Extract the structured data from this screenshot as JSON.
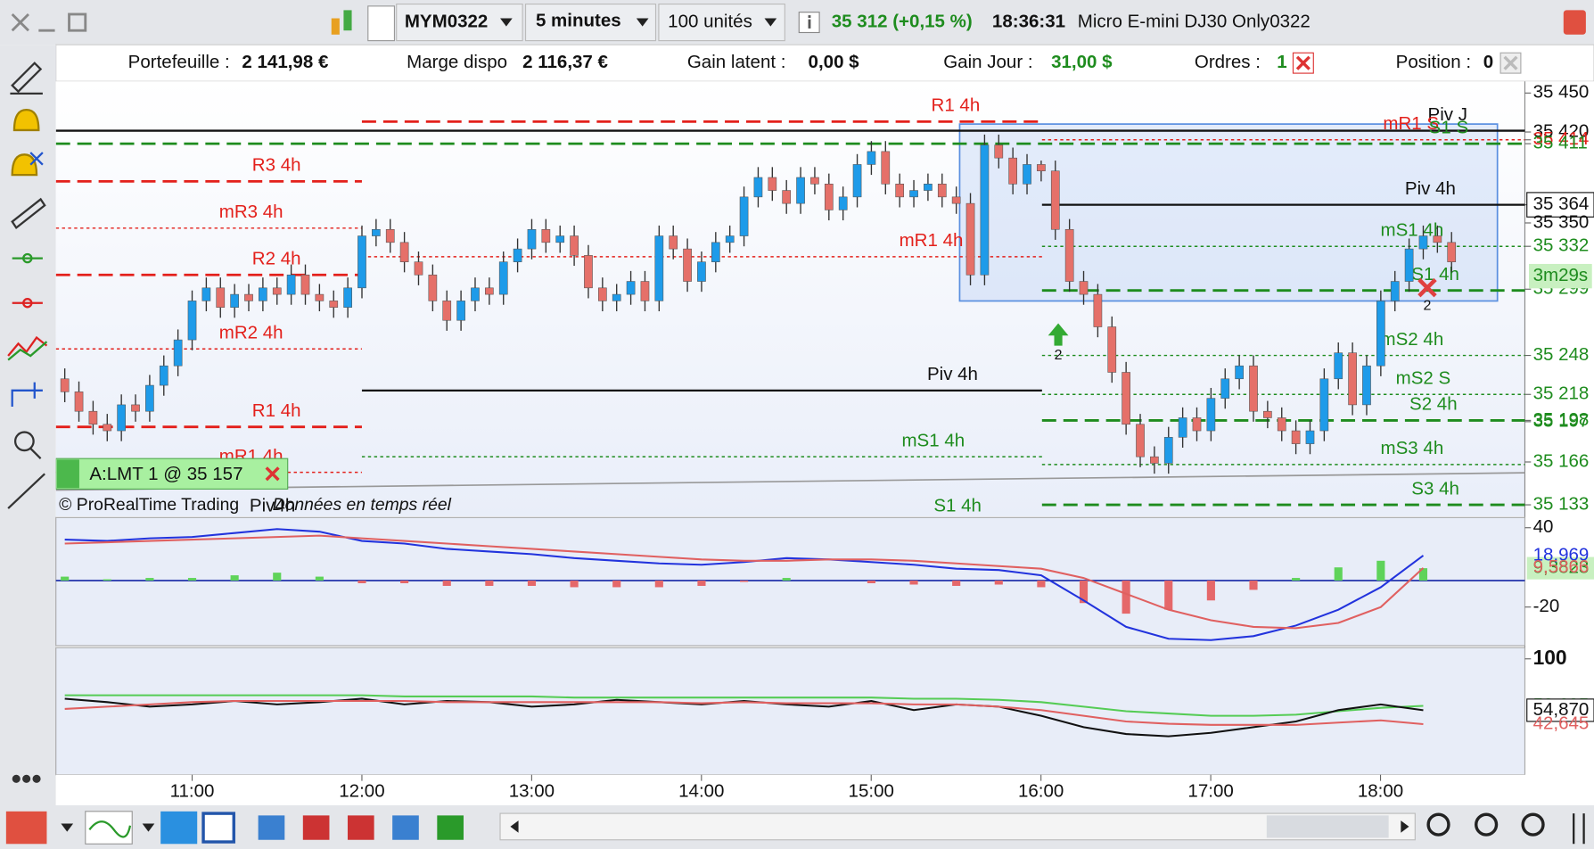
{
  "window": {
    "symbol": "MYM0322",
    "timeframe": "5 minutes",
    "quantity": "100 unités",
    "last_price": "35 312 (+0,15 %)",
    "clock": "18:36:31",
    "instrument": "Micro E-mini DJ30 Only0322"
  },
  "account": {
    "portfolio_label": "Portefeuille :",
    "portfolio": "2 141,98 €",
    "margin_label": "Marge dispo",
    "margin": "2 116,37 €",
    "unrealized_label": "Gain latent :",
    "unrealized": "0,00 $",
    "day_gain_label": "Gain Jour :",
    "day_gain": "31,00 $",
    "orders_label": "Ordres :",
    "orders": "1",
    "position_label": "Position :",
    "position": "0"
  },
  "chart_data": {
    "type": "candlestick",
    "up_color": "#1e9be9",
    "down_color": "#e57069",
    "ylim": [
      35124,
      35459
    ],
    "yticks": [
      {
        "value": 35450,
        "label": "35 450"
      },
      {
        "value": 35420,
        "label": "35 420"
      },
      {
        "value": 35414,
        "label": "35 414"
      },
      {
        "value": 35411,
        "label": "35 411"
      },
      {
        "value": 35364,
        "label": "35 364"
      },
      {
        "value": 35350,
        "label": "35 350"
      },
      {
        "value": 35332,
        "label": "35 332"
      },
      {
        "value": 35299,
        "label": "35 299"
      },
      {
        "value": 35248,
        "label": "35 248"
      },
      {
        "value": 35218,
        "label": "35 218"
      },
      {
        "value": 35198,
        "label": "35 198"
      },
      {
        "value": 35197,
        "label": "35 197"
      },
      {
        "value": 35166,
        "label": "35 166"
      },
      {
        "value": 35133,
        "label": "35 133"
      }
    ],
    "ytick_colors": [
      "#111111",
      "#111111",
      "#e3201b",
      "#1e8c1e",
      "#111111",
      "#111111",
      "#1e8c1e",
      "#1e8c1e",
      "#1e8c1e",
      "#1e8c1e",
      "#1e8c1e",
      "#1e8c1e",
      "#1e8c1e",
      "#1e8c1e"
    ],
    "countdown": "3m29s",
    "time_labels": [
      "11:00",
      "12:00",
      "13:00",
      "14:00",
      "15:00",
      "16:00",
      "17:00",
      "18:00"
    ],
    "candles": [
      [
        35230,
        35238,
        35212,
        35220
      ],
      [
        35220,
        35228,
        35197,
        35205
      ],
      [
        35205,
        35213,
        35187,
        35195
      ],
      [
        35195,
        35203,
        35182,
        35190
      ],
      [
        35190,
        35218,
        35182,
        35210
      ],
      [
        35210,
        35218,
        35197,
        35205
      ],
      [
        35205,
        35233,
        35197,
        35225
      ],
      [
        35225,
        35248,
        35217,
        35240
      ],
      [
        35240,
        35268,
        35232,
        35260
      ],
      [
        35260,
        35298,
        35252,
        35290
      ],
      [
        35290,
        35308,
        35282,
        35300
      ],
      [
        35300,
        35308,
        35277,
        35285
      ],
      [
        35285,
        35303,
        35277,
        35295
      ],
      [
        35295,
        35303,
        35282,
        35290
      ],
      [
        35290,
        35308,
        35282,
        35300
      ],
      [
        35300,
        35308,
        35287,
        35295
      ],
      [
        35295,
        35318,
        35287,
        35310
      ],
      [
        35310,
        35318,
        35287,
        35295
      ],
      [
        35295,
        35303,
        35282,
        35290
      ],
      [
        35290,
        35298,
        35277,
        35285
      ],
      [
        35285,
        35308,
        35277,
        35300
      ],
      [
        35300,
        35348,
        35292,
        35340
      ],
      [
        35340,
        35353,
        35332,
        35345
      ],
      [
        35345,
        35353,
        35327,
        35335
      ],
      [
        35335,
        35343,
        35312,
        35320
      ],
      [
        35320,
        35328,
        35302,
        35310
      ],
      [
        35310,
        35318,
        35282,
        35290
      ],
      [
        35290,
        35298,
        35267,
        35275
      ],
      [
        35275,
        35298,
        35267,
        35290
      ],
      [
        35290,
        35308,
        35282,
        35300
      ],
      [
        35300,
        35308,
        35287,
        35295
      ],
      [
        35295,
        35328,
        35287,
        35320
      ],
      [
        35320,
        35338,
        35312,
        35330
      ],
      [
        35330,
        35353,
        35322,
        35345
      ],
      [
        35345,
        35353,
        35327,
        35335
      ],
      [
        35335,
        35348,
        35327,
        35340
      ],
      [
        35340,
        35348,
        35317,
        35325
      ],
      [
        35325,
        35333,
        35292,
        35300
      ],
      [
        35300,
        35308,
        35282,
        35290
      ],
      [
        35290,
        35303,
        35282,
        35295
      ],
      [
        35295,
        35313,
        35287,
        35305
      ],
      [
        35305,
        35313,
        35282,
        35290
      ],
      [
        35290,
        35348,
        35282,
        35340
      ],
      [
        35340,
        35348,
        35322,
        35330
      ],
      [
        35330,
        35338,
        35297,
        35305
      ],
      [
        35305,
        35328,
        35297,
        35320
      ],
      [
        35320,
        35343,
        35312,
        35335
      ],
      [
        35335,
        35348,
        35327,
        35340
      ],
      [
        35340,
        35378,
        35332,
        35370
      ],
      [
        35370,
        35393,
        35362,
        35385
      ],
      [
        35385,
        35393,
        35367,
        35375
      ],
      [
        35375,
        35383,
        35357,
        35365
      ],
      [
        35365,
        35393,
        35357,
        35385
      ],
      [
        35385,
        35393,
        35372,
        35380
      ],
      [
        35380,
        35388,
        35352,
        35360
      ],
      [
        35360,
        35378,
        35352,
        35370
      ],
      [
        35370,
        35403,
        35362,
        35395
      ],
      [
        35395,
        35413,
        35387,
        35405
      ],
      [
        35405,
        35413,
        35372,
        35380
      ],
      [
        35380,
        35388,
        35362,
        35370
      ],
      [
        35370,
        35383,
        35362,
        35375
      ],
      [
        35375,
        35388,
        35367,
        35380
      ],
      [
        35380,
        35388,
        35362,
        35370
      ],
      [
        35370,
        35378,
        35357,
        35365
      ],
      [
        35365,
        35373,
        35302,
        35310
      ],
      [
        35310,
        35418,
        35302,
        35410
      ],
      [
        35410,
        35418,
        35392,
        35400
      ],
      [
        35400,
        35408,
        35372,
        35380
      ],
      [
        35380,
        35403,
        35372,
        35395
      ],
      [
        35395,
        35398,
        35382,
        35390
      ],
      [
        35390,
        35398,
        35337,
        35345
      ],
      [
        35345,
        35353,
        35297,
        35305
      ],
      [
        35305,
        35313,
        35287,
        35295
      ],
      [
        35295,
        35303,
        35262,
        35270
      ],
      [
        35270,
        35278,
        35227,
        35235
      ],
      [
        35235,
        35243,
        35187,
        35195
      ],
      [
        35195,
        35203,
        35162,
        35170
      ],
      [
        35170,
        35178,
        35157,
        35165
      ],
      [
        35165,
        35193,
        35157,
        35185
      ],
      [
        35185,
        35208,
        35177,
        35200
      ],
      [
        35200,
        35208,
        35182,
        35190
      ],
      [
        35190,
        35223,
        35182,
        35215
      ],
      [
        35215,
        35238,
        35207,
        35230
      ],
      [
        35230,
        35248,
        35222,
        35240
      ],
      [
        35240,
        35248,
        35197,
        35205
      ],
      [
        35205,
        35213,
        35192,
        35200
      ],
      [
        35200,
        35208,
        35182,
        35190
      ],
      [
        35190,
        35198,
        35172,
        35180
      ],
      [
        35180,
        35198,
        35172,
        35190
      ],
      [
        35190,
        35238,
        35182,
        35230
      ],
      [
        35230,
        35258,
        35222,
        35250
      ],
      [
        35250,
        35258,
        35202,
        35210
      ],
      [
        35210,
        35248,
        35202,
        35240
      ],
      [
        35240,
        35298,
        35232,
        35290
      ],
      [
        35290,
        35313,
        35282,
        35305
      ],
      [
        35305,
        35338,
        35297,
        35330
      ],
      [
        35330,
        35348,
        35322,
        35340
      ],
      [
        35340,
        35348,
        35327,
        35335
      ],
      [
        35335,
        35343,
        35312,
        35320
      ]
    ],
    "levels": [
      {
        "label": "R3 4h",
        "value": 35382,
        "color": "#e3201b",
        "style": "dashed"
      },
      {
        "label": "mR3 4h",
        "value": 35346,
        "color": "#e3201b",
        "style": "dotted"
      },
      {
        "label": "R2 4h",
        "value": 35310,
        "color": "#e3201b",
        "style": "dashed"
      },
      {
        "label": "mR2 4h",
        "value": 35253,
        "color": "#e3201b",
        "style": "dotted"
      },
      {
        "label": "R1 4h",
        "value": 35193,
        "color": "#e3201b",
        "style": "dashed"
      },
      {
        "label": "mR1 4h",
        "value": 35158,
        "color": "#e3201b",
        "style": "dotted"
      },
      {
        "label": "R1 4h",
        "value": 35428,
        "color": "#e3201b",
        "style": "dashed"
      },
      {
        "label": "mR1 4h",
        "value": 35324,
        "color": "#e3201b",
        "style": "dotted"
      },
      {
        "label": "Piv 4h",
        "value": 35221,
        "color": "#111111",
        "style": "solid"
      },
      {
        "label": "mS1 4h",
        "value": 35170,
        "color": "#1e8c1e",
        "style": "dotted"
      },
      {
        "label": "Piv J",
        "value": 35421,
        "color": "#111111",
        "style": "solid"
      },
      {
        "label": "mR1 S",
        "value": 35414,
        "color": "#e3201b",
        "style": "dotted"
      },
      {
        "label": "S1 S",
        "value": 35411,
        "color": "#1e8c1e",
        "style": "dashed"
      },
      {
        "label": "Piv 4h",
        "value": 35364,
        "color": "#111111",
        "style": "solid"
      },
      {
        "label": "mS1 4h",
        "value": 35332,
        "color": "#1e8c1e",
        "style": "dotted"
      },
      {
        "label": "S1 4h",
        "value": 35298,
        "color": "#1e8c1e",
        "style": "dashed"
      },
      {
        "label": "mS2 4h",
        "value": 35248,
        "color": "#1e8c1e",
        "style": "dotted"
      },
      {
        "label": "mS2 S",
        "value": 35218,
        "color": "#1e8c1e",
        "style": "dotted"
      },
      {
        "label": "S2 4h",
        "value": 35198,
        "color": "#1e8c1e",
        "style": "dashed"
      },
      {
        "label": "mS3 4h",
        "value": 35164,
        "color": "#1e8c1e",
        "style": "dotted"
      },
      {
        "label": "S3 4h",
        "value": 35133,
        "color": "#1e8c1e",
        "style": "dashed"
      },
      {
        "label": "S1 4h",
        "value": 35120,
        "color": "#1e8c1e",
        "style": "dashed"
      },
      {
        "label": "Piv4h",
        "value": 35120,
        "color": "#111111",
        "style": "solid"
      }
    ],
    "buy_marker": "2",
    "sell_marker": "2",
    "order_label": "A:LMT  1 @ 35 157",
    "watermark": "© ProRealTime Trading",
    "realtime": "Données en temps réel",
    "macd": {
      "ylim": [
        -49.2,
        47.7
      ],
      "yticks": [
        40,
        -20
      ],
      "pos_color": "#5fd35a",
      "neg_color": "#e5686a",
      "series": [
        {
          "color": "#2233dd",
          "values": [
            31,
            30,
            32,
            33,
            36,
            39,
            37,
            30,
            28,
            24,
            22,
            20,
            17,
            15,
            13,
            12,
            14,
            17,
            16,
            14,
            12,
            9,
            8,
            4,
            -15,
            -35,
            -44,
            -45,
            -42,
            -34,
            -22,
            -5,
            18.969
          ],
          "last_label": "18,969"
        },
        {
          "color": "#e06060",
          "values": [
            28,
            29,
            30,
            31,
            32,
            33,
            34,
            32,
            30,
            28,
            26,
            24,
            22,
            20,
            18,
            16,
            15,
            15,
            16,
            16,
            15,
            13,
            11,
            9,
            2,
            -10,
            -22,
            -30,
            -35,
            -36,
            -32,
            -20,
            9.5866
          ],
          "last_label": "9,5866"
        }
      ],
      "histogram": {
        "values": [
          3,
          1,
          2,
          2,
          4,
          6,
          3,
          -2,
          -2,
          -4,
          -4,
          -4,
          -5,
          -5,
          -5,
          -4,
          -1,
          2,
          0,
          -2,
          -3,
          -4,
          -3,
          -5,
          -17,
          -25,
          -22,
          -15,
          -7,
          2,
          10,
          15,
          9.3823
        ],
        "last_label": "9,3823"
      }
    },
    "oscillator": {
      "ylim": [
        -1.8,
        109.8
      ],
      "yticks": [
        100
      ],
      "series": [
        {
          "color": "#55cc55",
          "values": [
            68,
            68,
            68,
            68,
            68,
            68,
            68,
            68,
            67,
            67,
            67,
            67,
            66,
            66,
            66,
            66,
            66,
            66,
            66,
            66,
            65,
            65,
            64,
            62,
            58,
            54,
            52,
            50,
            50,
            51,
            54,
            57,
            58.695
          ],
          "last_label": "58,695"
        },
        {
          "color": "#111111",
          "values": [
            65,
            62,
            58,
            60,
            63,
            60,
            62,
            65,
            60,
            63,
            62,
            58,
            60,
            64,
            62,
            60,
            63,
            60,
            58,
            63,
            55,
            60,
            58,
            50,
            40,
            34,
            32,
            35,
            40,
            45,
            55,
            60,
            54.87
          ],
          "last_label": "54,870"
        },
        {
          "color": "#e06060",
          "values": [
            56,
            58,
            60,
            62,
            63,
            63,
            63,
            63,
            63,
            62,
            62,
            62,
            62,
            62,
            62,
            61,
            62,
            61,
            61,
            61,
            60,
            60,
            58,
            55,
            50,
            45,
            43,
            42,
            42,
            42,
            44,
            46,
            42.645
          ],
          "last_label": "42,645"
        }
      ]
    }
  }
}
